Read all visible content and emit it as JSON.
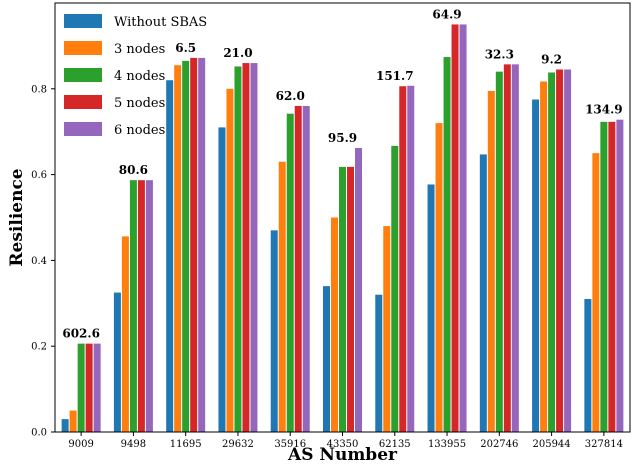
{
  "chart_data": {
    "type": "bar",
    "xlabel": "AS Number",
    "ylabel": "Resilience",
    "ylim": [
      0,
      1.0
    ],
    "yticks": [
      "0.0",
      "0.2",
      "0.4",
      "0.6",
      "0.8"
    ],
    "grid": false,
    "legend_position": "top-left",
    "categories": [
      "9009",
      "9498",
      "11695",
      "29632",
      "35916",
      "43350",
      "62135",
      "133955",
      "202746",
      "205944",
      "327814"
    ],
    "series": [
      {
        "name": "Without SBAS",
        "color": "#1f77b4",
        "values": [
          0.03,
          0.325,
          0.82,
          0.71,
          0.47,
          0.34,
          0.32,
          0.577,
          0.647,
          0.775,
          0.31
        ]
      },
      {
        "name": "3 nodes",
        "color": "#ff7f0e",
        "values": [
          0.05,
          0.456,
          0.855,
          0.8,
          0.63,
          0.5,
          0.48,
          0.72,
          0.795,
          0.817,
          0.65
        ]
      },
      {
        "name": "4 nodes",
        "color": "#2ca02c",
        "values": [
          0.206,
          0.587,
          0.865,
          0.852,
          0.742,
          0.618,
          0.667,
          0.874,
          0.84,
          0.838,
          0.723
        ]
      },
      {
        "name": "5 nodes",
        "color": "#d62728",
        "values": [
          0.206,
          0.587,
          0.872,
          0.86,
          0.76,
          0.618,
          0.806,
          0.95,
          0.857,
          0.845,
          0.723
        ]
      },
      {
        "name": "6 nodes",
        "color": "#9467bd",
        "values": [
          0.206,
          0.587,
          0.872,
          0.86,
          0.76,
          0.662,
          0.807,
          0.95,
          0.857,
          0.845,
          0.728
        ]
      }
    ],
    "annotations": [
      "602.6",
      "80.6",
      "6.5",
      "21.0",
      "62.0",
      "95.9",
      "151.7",
      "64.9",
      "32.3",
      "9.2",
      "134.9"
    ]
  }
}
